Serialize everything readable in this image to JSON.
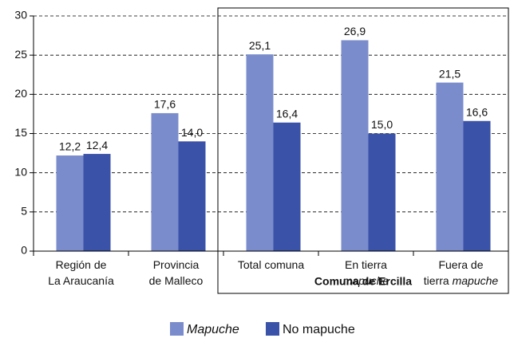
{
  "chart_data": {
    "type": "bar",
    "categories": [
      [
        [
          {
            "text": "Región de"
          }
        ],
        [
          {
            "text": "La Araucanía"
          }
        ]
      ],
      [
        [
          {
            "text": "Provincia"
          }
        ],
        [
          {
            "text": "de Malleco"
          }
        ]
      ],
      [
        [
          {
            "text": "Total comuna"
          }
        ]
      ],
      [
        [
          {
            "text": "En tierra"
          }
        ],
        [
          {
            "text": "mapuche",
            "italic": true
          }
        ]
      ],
      [
        [
          {
            "text": "Fuera de"
          }
        ],
        [
          {
            "text": "tierra "
          },
          {
            "text": "mapuche",
            "italic": true
          }
        ]
      ]
    ],
    "series": [
      {
        "name": "Mapuche",
        "italic": true,
        "color": "#7b8ccc",
        "values": [
          12.2,
          17.6,
          25.1,
          26.9,
          21.5
        ],
        "value_labels": [
          "12,2",
          "17,6",
          "25,1",
          "26,9",
          "21,5"
        ]
      },
      {
        "name": "No mapuche",
        "color": "#3a52a8",
        "values": [
          12.4,
          14.0,
          16.4,
          15.0,
          16.6
        ],
        "value_labels": [
          "12,4",
          "14,0",
          "16,4",
          "15,0",
          "16,6"
        ]
      }
    ],
    "ylim": [
      0,
      30
    ],
    "yticks": [
      0,
      5,
      10,
      15,
      20,
      25,
      30
    ],
    "grid": true,
    "group_annotation": {
      "label": "Comuna de Ercilla",
      "from": 2,
      "to": 4
    }
  }
}
